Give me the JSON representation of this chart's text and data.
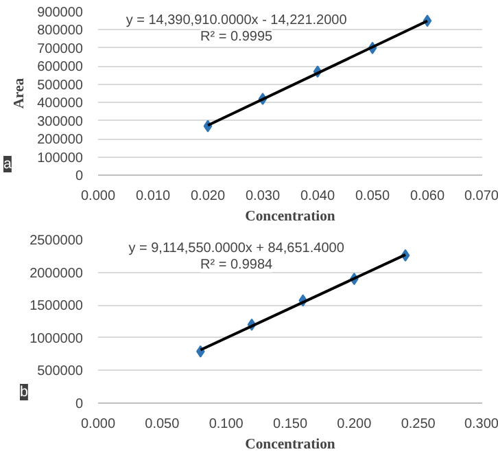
{
  "chart_data": [
    {
      "type": "scatter",
      "xlabel": "Concentration",
      "ylabel": "Area",
      "xlim": [
        0,
        0.07
      ],
      "xticks": [
        {
          "value": 0,
          "label": "0.000"
        },
        {
          "value": 0.01,
          "label": "0.010"
        },
        {
          "value": 0.02,
          "label": "0.020"
        },
        {
          "value": 0.03,
          "label": "0.030"
        },
        {
          "value": 0.04,
          "label": "0.040"
        },
        {
          "value": 0.05,
          "label": "0.050"
        },
        {
          "value": 0.06,
          "label": "0.060"
        },
        {
          "value": 0.07,
          "label": "0.070"
        }
      ],
      "ylim": [
        0,
        900000
      ],
      "yticks": [
        0,
        100000,
        200000,
        300000,
        400000,
        500000,
        600000,
        700000,
        800000,
        900000
      ],
      "grid": "y",
      "series": [
        {
          "marker": "diamond",
          "color": "#2e75b6",
          "x": [
            0.02,
            0.03,
            0.04,
            0.05,
            0.06
          ],
          "values": [
            270000,
            420000,
            570000,
            700000,
            850000
          ]
        },
        {
          "type": "line",
          "marker": "none",
          "color": "#000000",
          "x": [
            0.02,
            0.06
          ],
          "values": [
            274000,
            849000
          ]
        }
      ],
      "annotations": [
        "y = 14,390,910.0000x - 14,221.2000",
        "R² = 0.9995",
        "a"
      ]
    },
    {
      "type": "scatter",
      "xlabel": "Concentration",
      "xlim": [
        0,
        0.3
      ],
      "xticks": [
        {
          "value": 0,
          "label": "0.000"
        },
        {
          "value": 0.05,
          "label": "0.050"
        },
        {
          "value": 0.1,
          "label": "0.100"
        },
        {
          "value": 0.15,
          "label": "0.150"
        },
        {
          "value": 0.2,
          "label": "0.200"
        },
        {
          "value": 0.25,
          "label": "0.250"
        },
        {
          "value": 0.3,
          "label": "0.300"
        }
      ],
      "ylim": [
        0,
        2500000
      ],
      "yticks": [
        0,
        500000,
        1000000,
        1500000,
        2000000,
        2500000
      ],
      "grid": "y",
      "series": [
        {
          "marker": "diamond",
          "color": "#2e75b6",
          "x": [
            0.08,
            0.12,
            0.16,
            0.2,
            0.24
          ],
          "values": [
            790000,
            1200000,
            1570000,
            1900000,
            2260000
          ]
        },
        {
          "type": "line",
          "marker": "none",
          "color": "#000000",
          "x": [
            0.08,
            0.24
          ],
          "values": [
            814000,
            2270000
          ]
        }
      ],
      "annotations": [
        "y = 9,114,550.0000x + 84,651.4000",
        "R² = 0.9984",
        "b"
      ]
    }
  ]
}
